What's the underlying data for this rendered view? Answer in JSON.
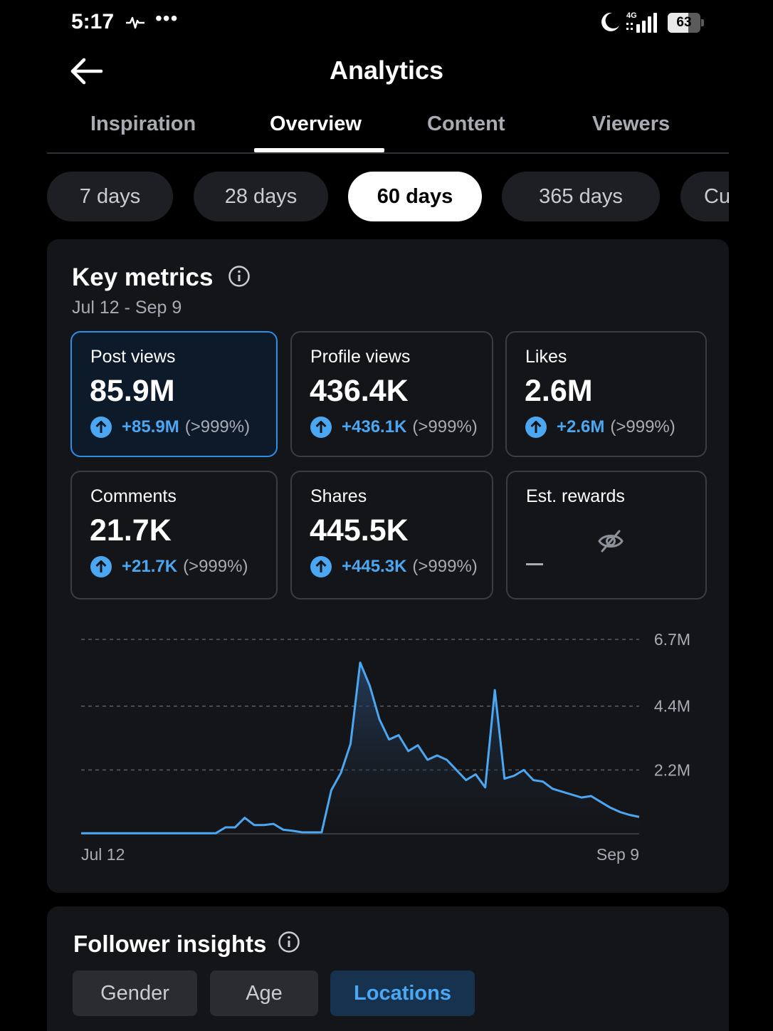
{
  "status_bar": {
    "time": "5:17",
    "dots": "•••",
    "network": "4G",
    "battery": "63",
    "battery_level": 0.63
  },
  "header": {
    "title": "Analytics",
    "back_icon": "arrow-left-icon"
  },
  "tabs": [
    {
      "label": "Inspiration"
    },
    {
      "label": "Overview",
      "active": true
    },
    {
      "label": "Content"
    },
    {
      "label": "Viewers"
    }
  ],
  "ranges": [
    {
      "label": "7 days"
    },
    {
      "label": "28 days"
    },
    {
      "label": "60 days",
      "active": true
    },
    {
      "label": "365 days"
    },
    {
      "label": "Cu"
    }
  ],
  "key_metrics": {
    "title": "Key metrics",
    "date_range": "Jul 12 - Sep 9",
    "metrics": [
      {
        "label": "Post views",
        "value": "85.9M",
        "delta": "+85.9M",
        "pct": "(>999%)",
        "selected": true
      },
      {
        "label": "Profile views",
        "value": "436.4K",
        "delta": "+436.1K",
        "pct": "(>999%)"
      },
      {
        "label": "Likes",
        "value": "2.6M",
        "delta": "+2.6M",
        "pct": "(>999%)"
      },
      {
        "label": "Comments",
        "value": "21.7K",
        "delta": "+21.7K",
        "pct": "(>999%)"
      },
      {
        "label": "Shares",
        "value": "445.5K",
        "delta": "+445.3K",
        "pct": "(>999%)"
      },
      {
        "label": "Est. rewards",
        "value": "—",
        "hidden_icon": "eye-off-icon"
      }
    ]
  },
  "colors": {
    "accent": "#2d8ee8",
    "line": "#4ba7f2",
    "background": "#000000",
    "card": "#141518"
  },
  "chart_data": {
    "type": "area",
    "x_start_label": "Jul 12",
    "x_end_label": "Sep 9",
    "y_ticks": [
      "6.7M",
      "4.4M",
      "2.2M"
    ],
    "y_tick_values": [
      6.7,
      4.4,
      2.2
    ],
    "ylim": [
      0,
      6.7
    ],
    "y_unit": "M",
    "grid": true,
    "values": [
      0.02,
      0.02,
      0.02,
      0.02,
      0.02,
      0.02,
      0.02,
      0.02,
      0.02,
      0.02,
      0.02,
      0.02,
      0.02,
      0.02,
      0.02,
      0.22,
      0.22,
      0.55,
      0.3,
      0.3,
      0.34,
      0.14,
      0.1,
      0.05,
      0.05,
      0.05,
      1.5,
      2.1,
      3.1,
      5.9,
      5.1,
      3.95,
      3.25,
      3.4,
      2.85,
      3.05,
      2.55,
      2.7,
      2.55,
      2.2,
      1.85,
      2.05,
      1.6,
      4.95,
      1.9,
      2.0,
      2.2,
      1.85,
      1.8,
      1.55,
      1.45,
      1.35,
      1.25,
      1.3,
      1.1,
      0.9,
      0.75,
      0.65,
      0.58
    ]
  },
  "follower_insights": {
    "title": "Follower insights",
    "segments": [
      {
        "label": "Gender"
      },
      {
        "label": "Age"
      },
      {
        "label": "Locations",
        "active": true
      }
    ]
  }
}
